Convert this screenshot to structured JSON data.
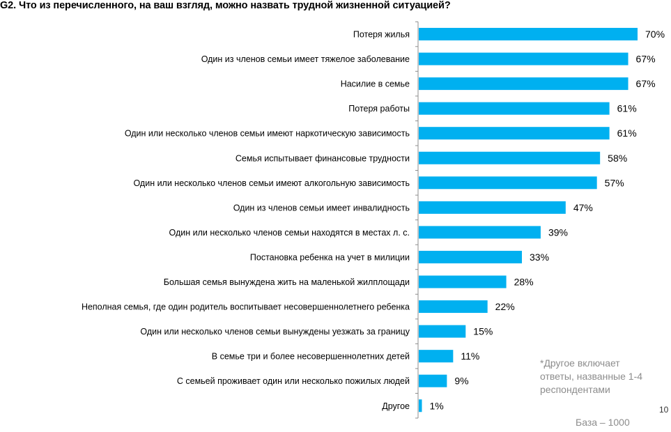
{
  "page": {
    "title": "G2. Что из перечисленного, на ваш взгляд, можно назвать трудной жизненной ситуацией?",
    "note": "*Другое включает ответы, названные 1-4 респондентами",
    "page_number": "10",
    "base": "База – 1000"
  },
  "colors": {
    "bar": "#00B0F0",
    "axis": "#8c8c8c"
  },
  "chart_data": {
    "type": "bar",
    "orientation": "horizontal",
    "title": "G2. Что из перечисленного, на ваш взгляд, можно назвать трудной жизненной ситуацией?",
    "xlabel": "",
    "ylabel": "",
    "unit": "%",
    "xlim": [
      0,
      70
    ],
    "grid": false,
    "legend": "none",
    "categories": [
      "Потеря жилья",
      "Один из членов семьи имеет тяжелое заболевание",
      "Насилие в семье",
      "Потеря работы",
      "Один или несколько членов семьи имеют наркотическую зависимость",
      "Семья испытывает финансовые трудности",
      "Один или несколько членов семьи имеют алкогольную зависимость",
      "Один из членов семьи имеет инвалидность",
      "Один или несколько членов семьи находятся в местах л. с.",
      "Постановка ребенка на учет в милиции",
      "Большая семья вынуждена жить на маленькой жилплощади",
      "Неполная семья, где один родитель воспитывает несовершеннолетнего ребенка",
      "Один или несколько членов семьи вынуждены уезжать за границу",
      "В семье три и более несовершеннолетних детей",
      "С семьей проживает один или несколько пожилых людей",
      "Другое"
    ],
    "values": [
      70,
      67,
      67,
      61,
      61,
      58,
      57,
      47,
      39,
      33,
      28,
      22,
      15,
      11,
      9,
      1
    ],
    "value_labels": [
      "70%",
      "67%",
      "67%",
      "61%",
      "61%",
      "58%",
      "57%",
      "47%",
      "39%",
      "33%",
      "28%",
      "22%",
      "15%",
      "11%",
      "9%",
      "1%"
    ],
    "annotations": [
      "*Другое включает ответы, названные 1-4 респондентами",
      "База – 1000"
    ]
  }
}
